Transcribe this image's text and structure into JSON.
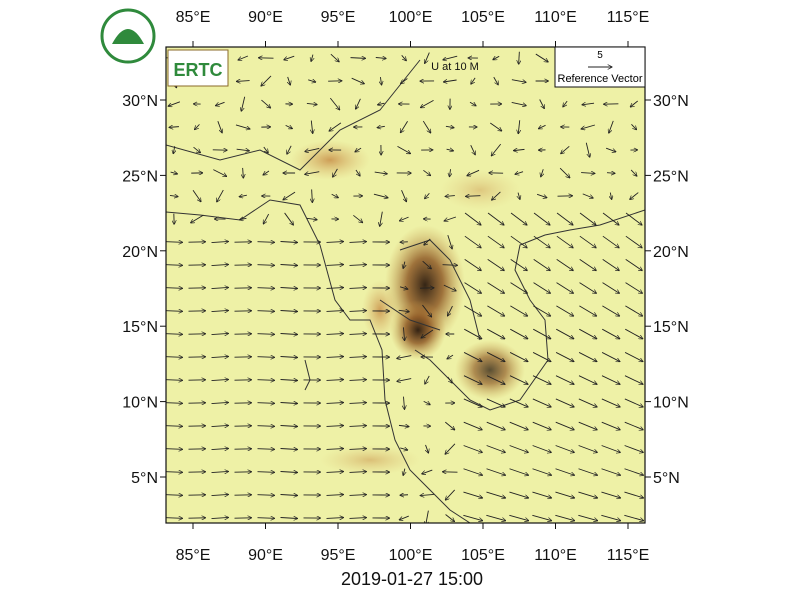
{
  "logo": {
    "text": "ERTC"
  },
  "map": {
    "annotation": "U at 10 M",
    "reference_vector": {
      "magnitude": "5",
      "label": "Reference Vector"
    },
    "lon_labels": [
      "85°E",
      "90°E",
      "95°E",
      "100°E",
      "105°E",
      "110°E",
      "115°E"
    ],
    "lat_labels": [
      "30°N",
      "25°N",
      "20°N",
      "15°N",
      "10°N",
      "5°N"
    ]
  },
  "timestamp": "2019-01-27 15:00"
}
